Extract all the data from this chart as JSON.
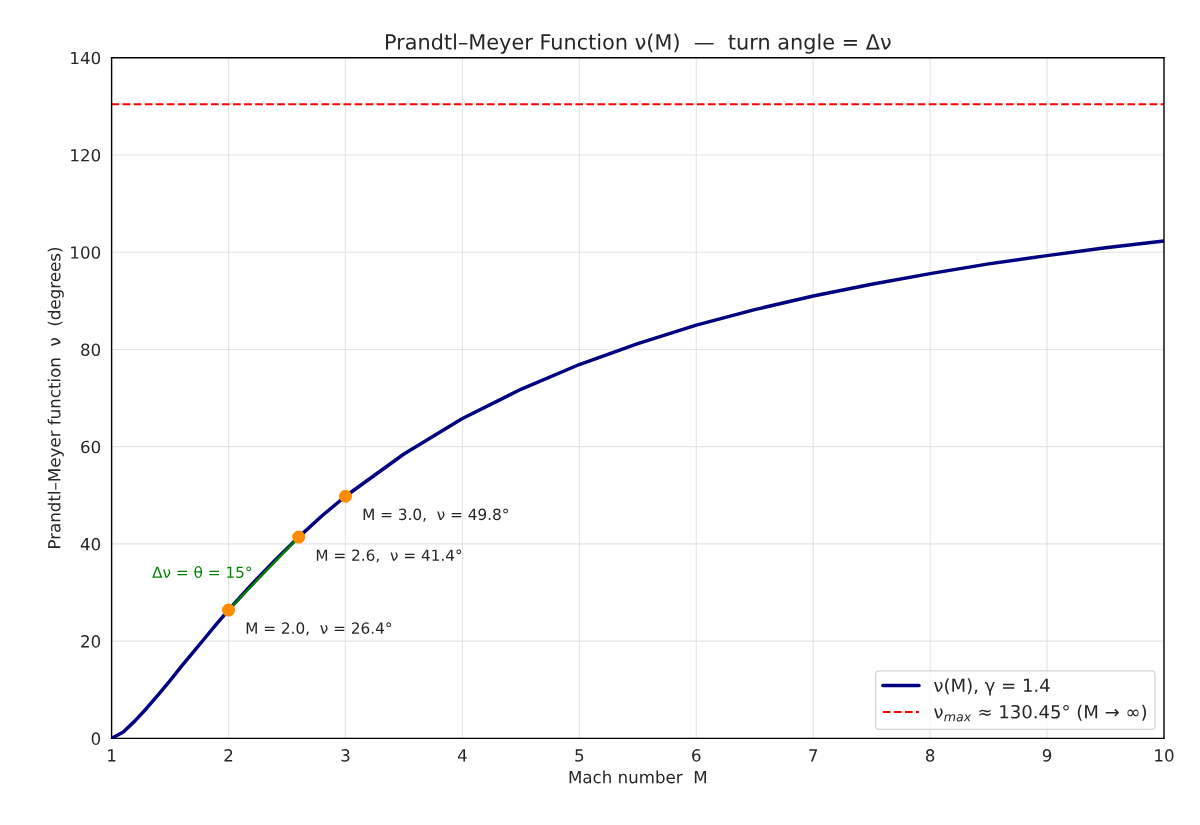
{
  "chart_data": {
    "type": "line",
    "title": "Prandtl–Meyer Function ν(M)  —  turn angle = Δν",
    "xlabel": "Mach number  M",
    "ylabel": "Prandtl–Meyer function  ν  (degrees)",
    "series": [
      {
        "name": "ν(M), γ = 1.4",
        "color": "#000080",
        "x": [
          1,
          1.1,
          1.2,
          1.3,
          1.4,
          1.5,
          1.6,
          1.7,
          1.8,
          1.9,
          2.0,
          2.2,
          2.4,
          2.6,
          2.8,
          3.0,
          3.5,
          4.0,
          4.5,
          5.0,
          5.5,
          6.0,
          6.5,
          7.0,
          7.5,
          8.0,
          8.5,
          9.0,
          9.5,
          10.0
        ],
        "values": [
          0,
          1.3,
          3.6,
          6.2,
          9.0,
          11.9,
          14.9,
          17.8,
          20.7,
          23.6,
          26.4,
          31.7,
          36.7,
          41.4,
          45.8,
          49.8,
          58.5,
          65.8,
          71.8,
          76.9,
          81.2,
          85.0,
          88.2,
          91.0,
          93.4,
          95.6,
          97.6,
          99.3,
          100.9,
          102.3
        ]
      },
      {
        "type": "scatter",
        "color": "#ff8c00",
        "marker": "circle",
        "x": [
          2.0,
          2.6,
          3.0
        ],
        "values": [
          26.4,
          41.4,
          49.8
        ]
      },
      {
        "color": "#008000",
        "x": [
          2.0,
          2.6
        ],
        "values": [
          26.4,
          41.4
        ]
      }
    ],
    "annotations": [
      {
        "text": "Δν = θ = 15°",
        "x": 2.3,
        "y": 33.9
      },
      {
        "text": "M = 2.0,  ν = 26.4°",
        "x": 2.0,
        "y": 26.4
      },
      {
        "text": "M = 2.6,  ν = 41.4°",
        "x": 2.6,
        "y": 41.4
      },
      {
        "text": "M = 3.0,  ν = 49.8°",
        "x": 3.0,
        "y": 49.8
      }
    ],
    "ref_lines": [
      {
        "axis": "y",
        "value": 130.45,
        "label": "ν$_{max}$ ≈ 130.45° (M → ∞)",
        "color": "#ff0000",
        "line_style": "dashed"
      }
    ],
    "xlim": [
      1,
      10
    ],
    "ylim": [
      0,
      140
    ],
    "xticks": [
      1,
      2,
      3,
      4,
      5,
      6,
      7,
      8,
      9,
      10
    ],
    "yticks": [
      0,
      20,
      40,
      60,
      80,
      100,
      120,
      140
    ],
    "grid": true,
    "legend": "bottom right"
  }
}
